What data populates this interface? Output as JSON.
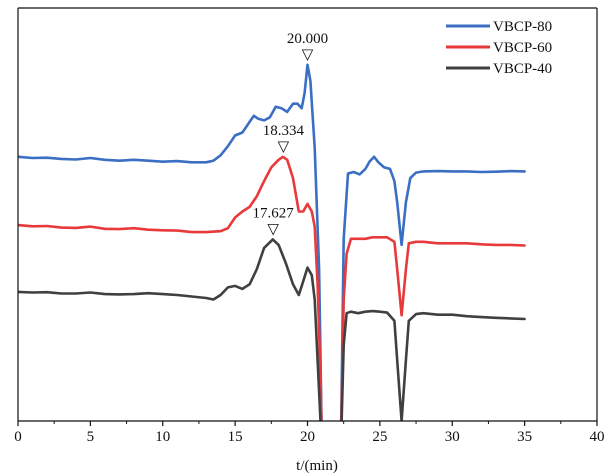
{
  "chart_data": {
    "type": "line",
    "title": "",
    "xlabel": "t/(min)",
    "ylabel": "",
    "xlim": [
      0,
      40
    ],
    "x_ticks": [
      "0",
      "5",
      "10",
      "15",
      "20",
      "25",
      "30",
      "35",
      "40"
    ],
    "y_axis_visible": false,
    "grid": false,
    "legend_position": "top-right",
    "series": [
      {
        "name": "VBCP-80",
        "color": "#3a6fc4",
        "points": [
          [
            0.0,
            0.87
          ],
          [
            1.0,
            0.866
          ],
          [
            2.0,
            0.867
          ],
          [
            3.0,
            0.863
          ],
          [
            4.0,
            0.861
          ],
          [
            5.0,
            0.866
          ],
          [
            6.0,
            0.86
          ],
          [
            7.0,
            0.857
          ],
          [
            8.0,
            0.86
          ],
          [
            9.0,
            0.857
          ],
          [
            10.0,
            0.854
          ],
          [
            11.0,
            0.856
          ],
          [
            12.0,
            0.852
          ],
          [
            13.0,
            0.852
          ],
          [
            13.5,
            0.857
          ],
          [
            14.0,
            0.875
          ],
          [
            14.5,
            0.905
          ],
          [
            15.0,
            0.94
          ],
          [
            15.5,
            0.95
          ],
          [
            16.0,
            0.985
          ],
          [
            16.3,
            1.005
          ],
          [
            16.6,
            0.995
          ],
          [
            17.0,
            0.99
          ],
          [
            17.4,
            1.0
          ],
          [
            17.8,
            1.035
          ],
          [
            18.2,
            1.03
          ],
          [
            18.6,
            1.018
          ],
          [
            19.0,
            1.045
          ],
          [
            19.3,
            1.045
          ],
          [
            19.6,
            1.03
          ],
          [
            19.8,
            1.08
          ],
          [
            20.0,
            1.173
          ],
          [
            20.2,
            1.12
          ],
          [
            20.5,
            0.9
          ],
          [
            20.8,
            0.5
          ],
          [
            21.0,
            -0.1
          ]
        ],
        "points_after_gap": [
          [
            22.3,
            -0.1
          ],
          [
            22.5,
            0.6
          ],
          [
            22.8,
            0.815
          ],
          [
            23.2,
            0.82
          ],
          [
            23.6,
            0.812
          ],
          [
            24.0,
            0.83
          ],
          [
            24.3,
            0.855
          ],
          [
            24.6,
            0.87
          ],
          [
            24.9,
            0.852
          ],
          [
            25.3,
            0.835
          ],
          [
            25.7,
            0.83
          ],
          [
            26.0,
            0.79
          ],
          [
            26.2,
            0.72
          ],
          [
            26.5,
            0.58
          ],
          [
            26.8,
            0.72
          ],
          [
            27.1,
            0.8
          ],
          [
            27.5,
            0.818
          ],
          [
            28.0,
            0.822
          ],
          [
            29.0,
            0.823
          ],
          [
            30.0,
            0.822
          ],
          [
            31.0,
            0.822
          ],
          [
            32.0,
            0.82
          ],
          [
            33.0,
            0.821
          ],
          [
            34.0,
            0.823
          ],
          [
            35.0,
            0.822
          ]
        ]
      },
      {
        "name": "VBCP-60",
        "color": "#e8393b",
        "points": [
          [
            0.0,
            0.645
          ],
          [
            1.0,
            0.641
          ],
          [
            2.0,
            0.642
          ],
          [
            3.0,
            0.637
          ],
          [
            4.0,
            0.636
          ],
          [
            5.0,
            0.64
          ],
          [
            6.0,
            0.633
          ],
          [
            7.0,
            0.632
          ],
          [
            8.0,
            0.635
          ],
          [
            9.0,
            0.63
          ],
          [
            10.0,
            0.628
          ],
          [
            11.0,
            0.627
          ],
          [
            12.0,
            0.622
          ],
          [
            13.0,
            0.622
          ],
          [
            14.0,
            0.625
          ],
          [
            14.5,
            0.635
          ],
          [
            15.0,
            0.67
          ],
          [
            15.5,
            0.69
          ],
          [
            16.0,
            0.705
          ],
          [
            16.5,
            0.74
          ],
          [
            17.0,
            0.79
          ],
          [
            17.5,
            0.835
          ],
          [
            18.0,
            0.86
          ],
          [
            18.3,
            0.87
          ],
          [
            18.6,
            0.86
          ],
          [
            19.0,
            0.8
          ],
          [
            19.4,
            0.69
          ],
          [
            19.7,
            0.69
          ],
          [
            20.0,
            0.715
          ],
          [
            20.3,
            0.69
          ],
          [
            20.5,
            0.64
          ],
          [
            20.7,
            0.45
          ],
          [
            20.9,
            0.15
          ],
          [
            21.0,
            -0.1
          ]
        ],
        "points_after_gap": [
          [
            22.3,
            -0.1
          ],
          [
            22.5,
            0.4
          ],
          [
            22.7,
            0.55
          ],
          [
            23.0,
            0.6
          ],
          [
            23.5,
            0.6
          ],
          [
            24.0,
            0.6
          ],
          [
            24.5,
            0.605
          ],
          [
            25.0,
            0.605
          ],
          [
            25.5,
            0.605
          ],
          [
            26.0,
            0.59
          ],
          [
            26.2,
            0.5
          ],
          [
            26.5,
            0.348
          ],
          [
            26.8,
            0.5
          ],
          [
            27.0,
            0.585
          ],
          [
            27.5,
            0.59
          ],
          [
            28.0,
            0.59
          ],
          [
            29.0,
            0.585
          ],
          [
            30.0,
            0.585
          ],
          [
            31.0,
            0.585
          ],
          [
            32.0,
            0.582
          ],
          [
            33.0,
            0.58
          ],
          [
            34.0,
            0.58
          ],
          [
            35.0,
            0.578
          ]
        ]
      },
      {
        "name": "VBCP-40",
        "color": "#404040",
        "points": [
          [
            0.0,
            0.425
          ],
          [
            1.0,
            0.423
          ],
          [
            2.0,
            0.424
          ],
          [
            3.0,
            0.42
          ],
          [
            4.0,
            0.42
          ],
          [
            5.0,
            0.423
          ],
          [
            6.0,
            0.418
          ],
          [
            7.0,
            0.417
          ],
          [
            8.0,
            0.418
          ],
          [
            9.0,
            0.421
          ],
          [
            10.0,
            0.418
          ],
          [
            11.0,
            0.415
          ],
          [
            12.0,
            0.41
          ],
          [
            13.0,
            0.405
          ],
          [
            13.5,
            0.4
          ],
          [
            14.0,
            0.415
          ],
          [
            14.5,
            0.44
          ],
          [
            15.0,
            0.445
          ],
          [
            15.5,
            0.435
          ],
          [
            16.0,
            0.45
          ],
          [
            16.5,
            0.5
          ],
          [
            17.0,
            0.57
          ],
          [
            17.6,
            0.598
          ],
          [
            18.0,
            0.58
          ],
          [
            18.5,
            0.52
          ],
          [
            19.0,
            0.45
          ],
          [
            19.4,
            0.415
          ],
          [
            19.7,
            0.46
          ],
          [
            20.0,
            0.505
          ],
          [
            20.3,
            0.48
          ],
          [
            20.5,
            0.4
          ],
          [
            20.7,
            0.2
          ],
          [
            20.9,
            0.0
          ],
          [
            21.0,
            -0.1
          ]
        ],
        "points_after_gap": [
          [
            22.3,
            -0.1
          ],
          [
            22.5,
            0.25
          ],
          [
            22.7,
            0.355
          ],
          [
            23.0,
            0.36
          ],
          [
            23.5,
            0.355
          ],
          [
            24.0,
            0.36
          ],
          [
            24.5,
            0.362
          ],
          [
            25.0,
            0.36
          ],
          [
            25.5,
            0.357
          ],
          [
            26.0,
            0.33
          ],
          [
            26.2,
            0.2
          ],
          [
            26.5,
            0.0
          ],
          [
            26.8,
            0.2
          ],
          [
            27.0,
            0.33
          ],
          [
            27.5,
            0.352
          ],
          [
            28.0,
            0.355
          ],
          [
            29.0,
            0.35
          ],
          [
            30.0,
            0.35
          ],
          [
            31.0,
            0.345
          ],
          [
            32.0,
            0.342
          ],
          [
            33.0,
            0.34
          ],
          [
            34.0,
            0.338
          ],
          [
            35.0,
            0.336
          ]
        ]
      }
    ],
    "annotations": [
      {
        "text": "20.000",
        "x": 20.0,
        "y": 1.173,
        "series": "VBCP-80",
        "marker": "▽"
      },
      {
        "text": "18.334",
        "x": 18.334,
        "y": 0.87,
        "series": "VBCP-60",
        "marker": "▽"
      },
      {
        "text": "17.627",
        "x": 17.627,
        "y": 0.598,
        "series": "VBCP-40",
        "marker": "▽"
      }
    ],
    "ylim": [
      0,
      1.36
    ]
  }
}
